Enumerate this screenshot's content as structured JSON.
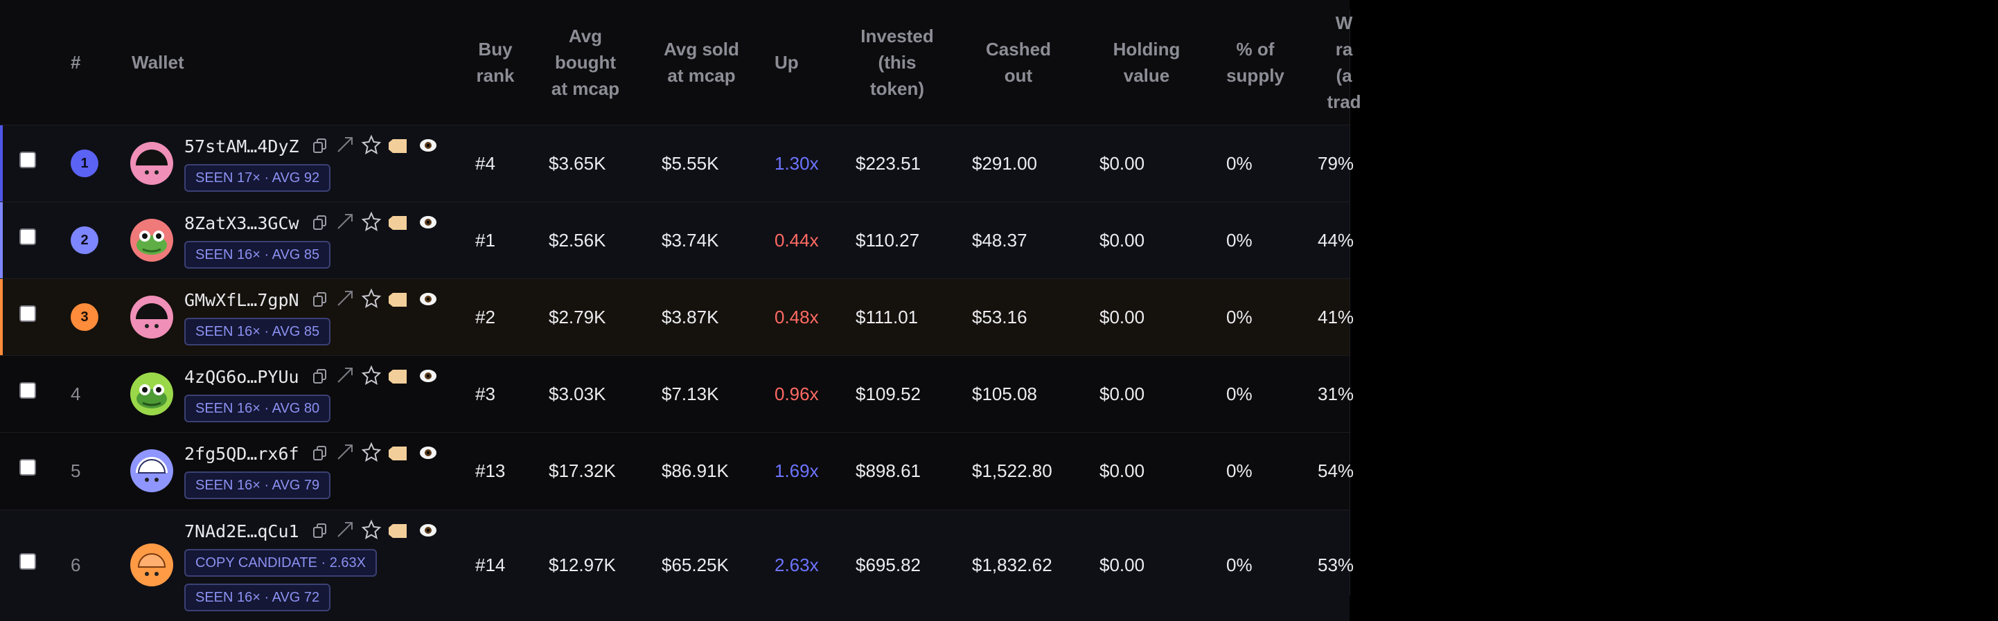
{
  "columns": {
    "num": "#",
    "wallet": "Wallet",
    "buy_rank": [
      "Buy",
      "rank"
    ],
    "avg_bought": [
      "Avg",
      "bought",
      "at mcap"
    ],
    "avg_sold": [
      "Avg sold",
      "at mcap"
    ],
    "up": "Up",
    "invested": [
      "Invested",
      "(this",
      "token)"
    ],
    "cashed_out": [
      "Cashed",
      "out"
    ],
    "holding_value": [
      "Holding",
      "value"
    ],
    "pct_supply": [
      "% of",
      "supply"
    ],
    "win_rate": [
      "W",
      "ra",
      "(a",
      "trad"
    ]
  },
  "colors": {
    "badge1": "#5b63f5",
    "badge2": "#7e86ff",
    "badge3": "#ff8c3a",
    "up_positive": "#6d74ff",
    "up_negative": "#ff6a63"
  },
  "rows": [
    {
      "num": "1",
      "badge": true,
      "address": "57stAM…4DyZ",
      "tags": [
        "SEEN 17× · AVG 92"
      ],
      "avatar": "pink-dome",
      "buy_rank": "#4",
      "avg_bought": "$3.65K",
      "avg_sold": "$5.55K",
      "up": "1.30x",
      "up_positive": true,
      "invested": "$223.51",
      "cashed_out": "$291.00",
      "holding": "$0.00",
      "supply": "0%",
      "win_rate": "79%"
    },
    {
      "num": "2",
      "badge": true,
      "address": "8ZatX3…3GCw",
      "tags": [
        "SEEN 16× · AVG 85"
      ],
      "avatar": "frog-red",
      "buy_rank": "#1",
      "avg_bought": "$2.56K",
      "avg_sold": "$3.74K",
      "up": "0.44x",
      "up_positive": false,
      "invested": "$110.27",
      "cashed_out": "$48.37",
      "holding": "$0.00",
      "supply": "0%",
      "win_rate": "44%"
    },
    {
      "num": "3",
      "badge": true,
      "address": "GMwXfL…7gpN",
      "tags": [
        "SEEN 16× · AVG 85"
      ],
      "avatar": "pink-dome",
      "buy_rank": "#2",
      "avg_bought": "$2.79K",
      "avg_sold": "$3.87K",
      "up": "0.48x",
      "up_positive": false,
      "invested": "$111.01",
      "cashed_out": "$53.16",
      "holding": "$0.00",
      "supply": "0%",
      "win_rate": "41%"
    },
    {
      "num": "4",
      "badge": false,
      "address": "4zQG6o…PYUu",
      "tags": [
        "SEEN 16× · AVG 80"
      ],
      "avatar": "frog-green",
      "buy_rank": "#3",
      "avg_bought": "$3.03K",
      "avg_sold": "$7.13K",
      "up": "0.96x",
      "up_positive": false,
      "invested": "$109.52",
      "cashed_out": "$105.08",
      "holding": "$0.00",
      "supply": "0%",
      "win_rate": "31%"
    },
    {
      "num": "5",
      "badge": false,
      "address": "2fg5QD…rx6f",
      "tags": [
        "SEEN 16× · AVG 79"
      ],
      "avatar": "blue-dome",
      "buy_rank": "#13",
      "avg_bought": "$17.32K",
      "avg_sold": "$86.91K",
      "up": "1.69x",
      "up_positive": true,
      "invested": "$898.61",
      "cashed_out": "$1,522.80",
      "holding": "$0.00",
      "supply": "0%",
      "win_rate": "54%"
    },
    {
      "num": "6",
      "badge": false,
      "address": "7NAd2E…qCu1",
      "tags": [
        "COPY CANDIDATE · 2.63X",
        "SEEN 16× · AVG 72"
      ],
      "avatar": "orange-dome",
      "buy_rank": "#14",
      "avg_bought": "$12.97K",
      "avg_sold": "$65.25K",
      "up": "2.63x",
      "up_positive": true,
      "invested": "$695.82",
      "cashed_out": "$1,832.62",
      "holding": "$0.00",
      "supply": "0%",
      "win_rate": "53%"
    }
  ]
}
